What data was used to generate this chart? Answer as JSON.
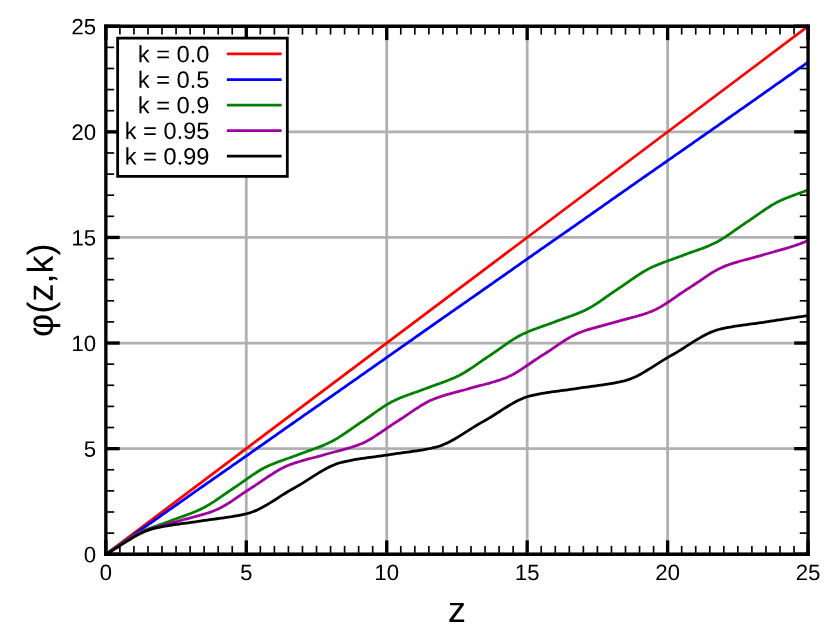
{
  "chart_data": {
    "type": "line",
    "xlabel": "z",
    "ylabel": "φ(z,k)",
    "xlim": [
      0,
      25
    ],
    "ylim": [
      0,
      25
    ],
    "xticks": [
      0,
      5,
      10,
      15,
      20,
      25
    ],
    "yticks": [
      0,
      5,
      10,
      15,
      20,
      25
    ],
    "grid": true,
    "legend": "top left",
    "line_style": "solid",
    "marker": "none",
    "series": [
      {
        "name": "k = 0.0",
        "color": "#ff0000",
        "x": [
          0,
          25
        ],
        "values": [
          0,
          25
        ]
      },
      {
        "name": "k = 0.5",
        "color": "#0000ff",
        "x": [
          0,
          1.69,
          3.37,
          5.06,
          6.74,
          8.43,
          10.11,
          11.8,
          13.49,
          15.17,
          16.86,
          18.54,
          20.23,
          21.92,
          23.6,
          25
        ],
        "values": [
          0,
          1.57,
          3.14,
          4.71,
          6.28,
          7.85,
          9.42,
          11.0,
          12.57,
          14.14,
          15.71,
          17.28,
          18.85,
          20.42,
          21.99,
          23.3
        ]
      },
      {
        "name": "k = 0.9",
        "color": "#008000",
        "x": [
          0,
          1.14,
          2.28,
          3.42,
          4.56,
          5.7,
          6.84,
          7.98,
          9.12,
          10.26,
          11.4,
          12.54,
          13.68,
          14.82,
          15.96,
          17.1,
          18.24,
          19.38,
          20.52,
          21.66,
          22.8,
          23.95,
          25
        ],
        "values": [
          0,
          0.99,
          1.57,
          2.16,
          3.14,
          4.13,
          4.71,
          5.3,
          6.28,
          7.27,
          7.85,
          8.44,
          9.42,
          10.41,
          10.99,
          11.58,
          12.57,
          13.55,
          14.14,
          14.72,
          15.71,
          16.7,
          17.25
        ]
      },
      {
        "name": "k = 0.95",
        "color": "#a000a0",
        "x": [
          0,
          1.3,
          2.59,
          3.89,
          5.18,
          6.48,
          7.77,
          9.07,
          10.36,
          11.66,
          12.95,
          14.25,
          15.54,
          16.84,
          18.13,
          19.43,
          20.72,
          22.02,
          23.31,
          24.61,
          25
        ],
        "values": [
          0,
          1.06,
          1.57,
          2.08,
          3.14,
          4.2,
          4.71,
          5.22,
          6.28,
          7.34,
          7.85,
          8.36,
          9.42,
          10.48,
          10.99,
          11.5,
          12.57,
          13.63,
          14.14,
          14.65,
          14.85
        ]
      },
      {
        "name": "k = 0.99",
        "color": "#000000",
        "x": [
          0,
          1.68,
          3.36,
          5.04,
          6.71,
          8.39,
          10.07,
          11.75,
          13.43,
          15.11,
          16.78,
          18.46,
          20.14,
          21.82,
          23.5,
          25
        ],
        "values": [
          0,
          1.21,
          1.57,
          1.93,
          3.14,
          4.35,
          4.71,
          5.07,
          6.28,
          7.5,
          7.85,
          8.21,
          9.42,
          10.64,
          11.0,
          11.3
        ]
      }
    ]
  }
}
